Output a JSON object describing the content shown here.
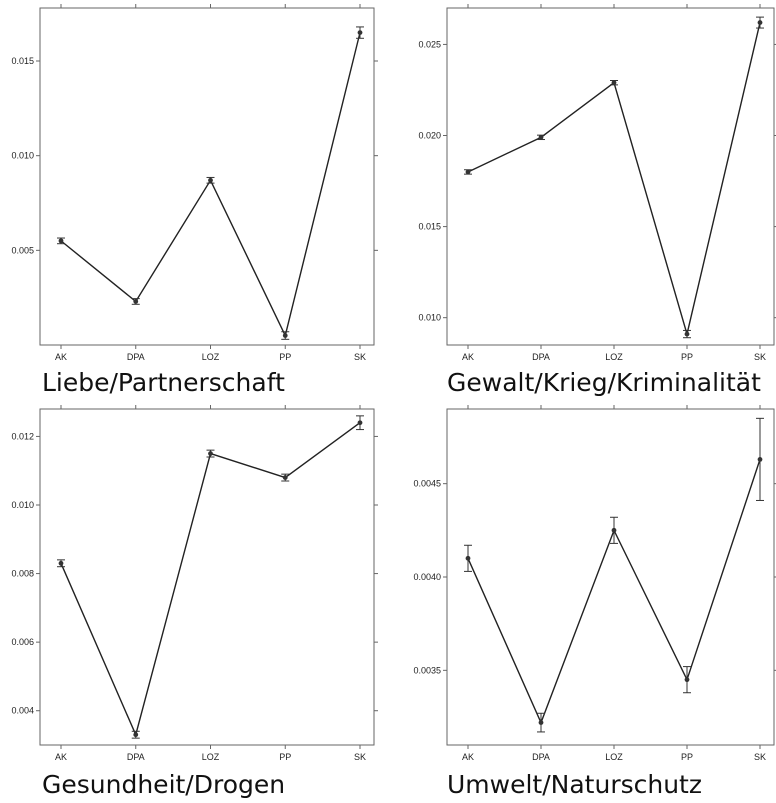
{
  "chart_data": [
    {
      "type": "line",
      "caption": "Liebe/Partnerschaft",
      "categories": [
        "AK",
        "DPA",
        "LOZ",
        "PP",
        "SK"
      ],
      "values": [
        0.0055,
        0.0023,
        0.0087,
        0.0005,
        0.0165
      ],
      "error": [
        0.00015,
        0.00015,
        0.00015,
        0.0002,
        0.0003
      ],
      "yticks": [
        0.005,
        0.01,
        0.015
      ],
      "ytick_labels": [
        "0.005",
        "0.010",
        "0.015"
      ],
      "ylim": [
        0.0,
        0.0178
      ]
    },
    {
      "type": "line",
      "caption": "Gewalt/Krieg/Kriminalität",
      "categories": [
        "AK",
        "DPA",
        "LOZ",
        "PP",
        "SK"
      ],
      "values": [
        0.018,
        0.0199,
        0.0229,
        0.0091,
        0.0262
      ],
      "error": [
        0.00012,
        0.00012,
        0.00012,
        0.0002,
        0.0003
      ],
      "yticks": [
        0.01,
        0.015,
        0.02,
        0.025
      ],
      "ytick_labels": [
        "0.010",
        "0.015",
        "0.020",
        "0.025"
      ],
      "ylim": [
        0.0085,
        0.027
      ]
    },
    {
      "type": "line",
      "caption": "Gesundheit/Drogen",
      "categories": [
        "AK",
        "DPA",
        "LOZ",
        "PP",
        "SK"
      ],
      "values": [
        0.0083,
        0.0033,
        0.0115,
        0.0108,
        0.0124
      ],
      "error": [
        0.0001,
        0.0001,
        0.0001,
        0.0001,
        0.0002
      ],
      "yticks": [
        0.004,
        0.006,
        0.008,
        0.01,
        0.012
      ],
      "ytick_labels": [
        "0.004",
        "0.006",
        "0.008",
        "0.010",
        "0.012"
      ],
      "ylim": [
        0.003,
        0.0128
      ]
    },
    {
      "type": "line",
      "caption": "Umwelt/Naturschutz",
      "categories": [
        "AK",
        "DPA",
        "LOZ",
        "PP",
        "SK"
      ],
      "values": [
        0.0041,
        0.00322,
        0.00425,
        0.00345,
        0.00463
      ],
      "error": [
        7e-05,
        5e-05,
        7e-05,
        7e-05,
        0.00022
      ],
      "yticks": [
        0.0035,
        0.004,
        0.0045
      ],
      "ytick_labels": [
        "0.0035",
        "0.0040",
        "0.0045"
      ],
      "ylim": [
        0.0031,
        0.0049
      ]
    }
  ]
}
